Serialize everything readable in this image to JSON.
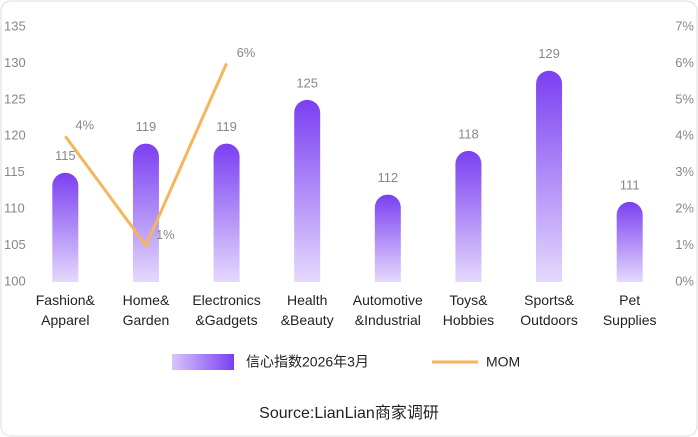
{
  "chart_data": {
    "type": "bar",
    "categories": [
      "Fashion&\nApparel",
      "Home&\nGarden",
      "Electronics\n&Gadgets",
      "Health\n&Beauty",
      "Automotive\n&Industrial",
      "Toys&\nHobbies",
      "Sports&\nOutdoors",
      "Pet\nSupplies"
    ],
    "series": [
      {
        "name": "信心指数2026年3月",
        "type": "bar",
        "color": "#7b3ff2",
        "values": [
          115,
          119,
          119,
          125,
          112,
          118,
          129,
          111
        ]
      },
      {
        "name": "MOM",
        "type": "line",
        "axis": "y2",
        "color": "#f5b55a",
        "values": [
          4,
          1,
          6,
          null,
          null,
          null,
          null,
          null
        ],
        "value_labels": [
          "4%",
          "1%",
          "6%",
          null,
          null,
          null,
          null,
          null
        ]
      }
    ],
    "ylim": [
      100,
      135
    ],
    "yticks": [
      100,
      105,
      110,
      115,
      120,
      125,
      130,
      135
    ],
    "y2lim": [
      0,
      7
    ],
    "y2ticks": [
      {
        "value": 0,
        "label": "0%"
      },
      {
        "value": 1,
        "label": "1%"
      },
      {
        "value": 2,
        "label": "2%"
      },
      {
        "value": 3,
        "label": "3%"
      },
      {
        "value": 4,
        "label": "4%"
      },
      {
        "value": 5,
        "label": "5%"
      },
      {
        "value": 6,
        "label": "6%"
      },
      {
        "value": 7,
        "label": "7%"
      }
    ],
    "source": "Source:LianLian商家调研"
  }
}
